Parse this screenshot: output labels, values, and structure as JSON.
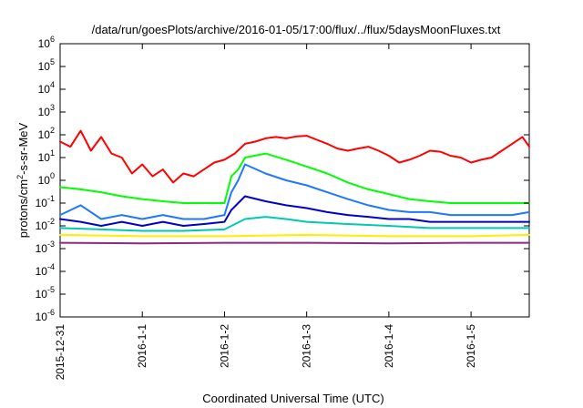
{
  "chart_data": {
    "type": "line",
    "title": "/data/run/goesPlots/archive/2016-01-05/17:00/flux/../flux/5daysMoonFluxes.txt",
    "xlabel": "Coordinated Universal Time (UTC)",
    "ylabel_parts": [
      "protons/cm",
      "2",
      "-s-sr-MeV"
    ],
    "y_scale": "log",
    "ylim": [
      1e-06,
      1000000.0
    ],
    "y_ticks": [
      {
        "value": 1000000.0,
        "base": "10",
        "exp": "6"
      },
      {
        "value": 100000.0,
        "base": "10",
        "exp": "5"
      },
      {
        "value": 10000.0,
        "base": "10",
        "exp": "4"
      },
      {
        "value": 1000.0,
        "base": "10",
        "exp": "3"
      },
      {
        "value": 100.0,
        "base": "10",
        "exp": "2"
      },
      {
        "value": 10.0,
        "base": "10",
        "exp": "1"
      },
      {
        "value": 1.0,
        "base": "10",
        "exp": "0"
      },
      {
        "value": 0.1,
        "base": "10",
        "exp": "-1"
      },
      {
        "value": 0.01,
        "base": "10",
        "exp": "-2"
      },
      {
        "value": 0.001,
        "base": "10",
        "exp": "-3"
      },
      {
        "value": 0.0001,
        "base": "10",
        "exp": "-4"
      },
      {
        "value": 1e-05,
        "base": "10",
        "exp": "-5"
      },
      {
        "value": 1e-06,
        "base": "10",
        "exp": "-6"
      }
    ],
    "xlim": [
      "2015-12-31",
      "2016-01-05 17:00"
    ],
    "x_ticks": [
      {
        "date": "2015-12-31",
        "label": "2015-12-31"
      },
      {
        "date": "2016-01-01",
        "label": "2016-1-1"
      },
      {
        "date": "2016-01-02",
        "label": "2016-1-2"
      },
      {
        "date": "2016-01-03",
        "label": "2016-1-3"
      },
      {
        "date": "2016-01-04",
        "label": "2016-1-4"
      },
      {
        "date": "2016-01-05",
        "label": "2016-1-5"
      }
    ],
    "grid": false,
    "legend": "none",
    "series": [
      {
        "color": "#ff0000",
        "values": [
          [
            "2015-12-31 00:00",
            50
          ],
          [
            "2015-12-31 03:00",
            30
          ],
          [
            "2015-12-31 06:00",
            150
          ],
          [
            "2015-12-31 09:00",
            20
          ],
          [
            "2015-12-31 12:00",
            80
          ],
          [
            "2015-12-31 15:00",
            15
          ],
          [
            "2015-12-31 18:00",
            10
          ],
          [
            "2015-12-31 21:00",
            2
          ],
          [
            "2016-01-01 00:00",
            5
          ],
          [
            "2016-01-01 03:00",
            1.5
          ],
          [
            "2016-01-01 06:00",
            3
          ],
          [
            "2016-01-01 09:00",
            0.8
          ],
          [
            "2016-01-01 12:00",
            2
          ],
          [
            "2016-01-01 15:00",
            1.5
          ],
          [
            "2016-01-01 18:00",
            3
          ],
          [
            "2016-01-01 21:00",
            6
          ],
          [
            "2016-01-02 00:00",
            8
          ],
          [
            "2016-01-02 03:00",
            15
          ],
          [
            "2016-01-02 06:00",
            40
          ],
          [
            "2016-01-02 09:00",
            50
          ],
          [
            "2016-01-02 12:00",
            70
          ],
          [
            "2016-01-02 15:00",
            80
          ],
          [
            "2016-01-02 18:00",
            70
          ],
          [
            "2016-01-02 21:00",
            85
          ],
          [
            "2016-01-03 00:00",
            90
          ],
          [
            "2016-01-03 03:00",
            60
          ],
          [
            "2016-01-03 06:00",
            40
          ],
          [
            "2016-01-03 09:00",
            25
          ],
          [
            "2016-01-03 12:00",
            20
          ],
          [
            "2016-01-03 15:00",
            25
          ],
          [
            "2016-01-03 18:00",
            30
          ],
          [
            "2016-01-03 21:00",
            20
          ],
          [
            "2016-01-04 00:00",
            12
          ],
          [
            "2016-01-04 03:00",
            6
          ],
          [
            "2016-01-04 06:00",
            8
          ],
          [
            "2016-01-04 09:00",
            12
          ],
          [
            "2016-01-04 12:00",
            20
          ],
          [
            "2016-01-04 15:00",
            18
          ],
          [
            "2016-01-04 18:00",
            12
          ],
          [
            "2016-01-04 21:00",
            10
          ],
          [
            "2016-01-05 00:00",
            6
          ],
          [
            "2016-01-05 03:00",
            8
          ],
          [
            "2016-01-05 06:00",
            10
          ],
          [
            "2016-01-05 09:00",
            20
          ],
          [
            "2016-01-05 12:00",
            40
          ],
          [
            "2016-01-05 15:00",
            80
          ],
          [
            "2016-01-05 17:00",
            30
          ]
        ]
      },
      {
        "color": "#00ff00",
        "values": [
          [
            "2015-12-31 00:00",
            0.5
          ],
          [
            "2015-12-31 06:00",
            0.4
          ],
          [
            "2015-12-31 12:00",
            0.3
          ],
          [
            "2015-12-31 18:00",
            0.2
          ],
          [
            "2016-01-01 00:00",
            0.15
          ],
          [
            "2016-01-01 06:00",
            0.12
          ],
          [
            "2016-01-01 12:00",
            0.1
          ],
          [
            "2016-01-01 18:00",
            0.1
          ],
          [
            "2016-01-02 00:00",
            0.1
          ],
          [
            "2016-01-02 02:00",
            1.5
          ],
          [
            "2016-01-02 04:00",
            3
          ],
          [
            "2016-01-02 06:00",
            10
          ],
          [
            "2016-01-02 12:00",
            15
          ],
          [
            "2016-01-02 18:00",
            8
          ],
          [
            "2016-01-03 00:00",
            4
          ],
          [
            "2016-01-03 06:00",
            2
          ],
          [
            "2016-01-03 12:00",
            0.8
          ],
          [
            "2016-01-03 18:00",
            0.4
          ],
          [
            "2016-01-04 00:00",
            0.25
          ],
          [
            "2016-01-04 06:00",
            0.15
          ],
          [
            "2016-01-04 12:00",
            0.12
          ],
          [
            "2016-01-04 18:00",
            0.1
          ],
          [
            "2016-01-05 00:00",
            0.1
          ],
          [
            "2016-01-05 06:00",
            0.1
          ],
          [
            "2016-01-05 12:00",
            0.1
          ],
          [
            "2016-01-05 17:00",
            0.1
          ]
        ]
      },
      {
        "color": "#1e78ff",
        "values": [
          [
            "2015-12-31 00:00",
            0.03
          ],
          [
            "2015-12-31 06:00",
            0.08
          ],
          [
            "2015-12-31 12:00",
            0.02
          ],
          [
            "2015-12-31 18:00",
            0.03
          ],
          [
            "2016-01-01 00:00",
            0.02
          ],
          [
            "2016-01-01 06:00",
            0.03
          ],
          [
            "2016-01-01 12:00",
            0.02
          ],
          [
            "2016-01-01 18:00",
            0.02
          ],
          [
            "2016-01-02 00:00",
            0.03
          ],
          [
            "2016-01-02 02:00",
            0.3
          ],
          [
            "2016-01-02 04:00",
            1
          ],
          [
            "2016-01-02 06:00",
            5
          ],
          [
            "2016-01-02 12:00",
            2
          ],
          [
            "2016-01-02 18:00",
            1
          ],
          [
            "2016-01-03 00:00",
            0.6
          ],
          [
            "2016-01-03 06:00",
            0.3
          ],
          [
            "2016-01-03 12:00",
            0.15
          ],
          [
            "2016-01-03 18:00",
            0.08
          ],
          [
            "2016-01-04 00:00",
            0.05
          ],
          [
            "2016-01-04 06:00",
            0.04
          ],
          [
            "2016-01-04 12:00",
            0.04
          ],
          [
            "2016-01-04 18:00",
            0.03
          ],
          [
            "2016-01-05 00:00",
            0.03
          ],
          [
            "2016-01-05 06:00",
            0.03
          ],
          [
            "2016-01-05 12:00",
            0.03
          ],
          [
            "2016-01-05 17:00",
            0.04
          ]
        ]
      },
      {
        "color": "#0000cc",
        "values": [
          [
            "2015-12-31 00:00",
            0.02
          ],
          [
            "2015-12-31 06:00",
            0.015
          ],
          [
            "2015-12-31 12:00",
            0.01
          ],
          [
            "2015-12-31 18:00",
            0.015
          ],
          [
            "2016-01-01 00:00",
            0.01
          ],
          [
            "2016-01-01 06:00",
            0.015
          ],
          [
            "2016-01-01 12:00",
            0.01
          ],
          [
            "2016-01-01 18:00",
            0.012
          ],
          [
            "2016-01-02 00:00",
            0.015
          ],
          [
            "2016-01-02 02:00",
            0.05
          ],
          [
            "2016-01-02 04:00",
            0.1
          ],
          [
            "2016-01-02 06:00",
            0.2
          ],
          [
            "2016-01-02 12:00",
            0.12
          ],
          [
            "2016-01-02 18:00",
            0.08
          ],
          [
            "2016-01-03 00:00",
            0.06
          ],
          [
            "2016-01-03 06:00",
            0.04
          ],
          [
            "2016-01-03 12:00",
            0.03
          ],
          [
            "2016-01-03 18:00",
            0.025
          ],
          [
            "2016-01-04 00:00",
            0.02
          ],
          [
            "2016-01-04 06:00",
            0.02
          ],
          [
            "2016-01-04 12:00",
            0.015
          ],
          [
            "2016-01-04 18:00",
            0.015
          ],
          [
            "2016-01-05 00:00",
            0.015
          ],
          [
            "2016-01-05 06:00",
            0.015
          ],
          [
            "2016-01-05 12:00",
            0.015
          ],
          [
            "2016-01-05 17:00",
            0.015
          ]
        ]
      },
      {
        "color": "#00c8b4",
        "values": [
          [
            "2015-12-31 00:00",
            0.008
          ],
          [
            "2015-12-31 12:00",
            0.007
          ],
          [
            "2016-01-01 00:00",
            0.006
          ],
          [
            "2016-01-01 12:00",
            0.006
          ],
          [
            "2016-01-02 00:00",
            0.007
          ],
          [
            "2016-01-02 06:00",
            0.02
          ],
          [
            "2016-01-02 12:00",
            0.025
          ],
          [
            "2016-01-02 18:00",
            0.02
          ],
          [
            "2016-01-03 00:00",
            0.015
          ],
          [
            "2016-01-03 12:00",
            0.012
          ],
          [
            "2016-01-04 00:00",
            0.01
          ],
          [
            "2016-01-04 12:00",
            0.008
          ],
          [
            "2016-01-05 00:00",
            0.008
          ],
          [
            "2016-01-05 17:00",
            0.008
          ]
        ]
      },
      {
        "color": "#ffee00",
        "values": [
          [
            "2015-12-31 00:00",
            0.004
          ],
          [
            "2016-01-01 00:00",
            0.0035
          ],
          [
            "2016-01-02 00:00",
            0.0035
          ],
          [
            "2016-01-03 00:00",
            0.004
          ],
          [
            "2016-01-04 00:00",
            0.0035
          ],
          [
            "2016-01-05 00:00",
            0.0035
          ],
          [
            "2016-01-05 17:00",
            0.004
          ]
        ]
      },
      {
        "color": "#8b2a82",
        "values": [
          [
            "2015-12-31 00:00",
            0.0018
          ],
          [
            "2016-01-01 00:00",
            0.0017
          ],
          [
            "2016-01-02 00:00",
            0.0018
          ],
          [
            "2016-01-03 00:00",
            0.0018
          ],
          [
            "2016-01-04 00:00",
            0.0017
          ],
          [
            "2016-01-05 00:00",
            0.0018
          ],
          [
            "2016-01-05 17:00",
            0.0018
          ]
        ]
      }
    ]
  }
}
